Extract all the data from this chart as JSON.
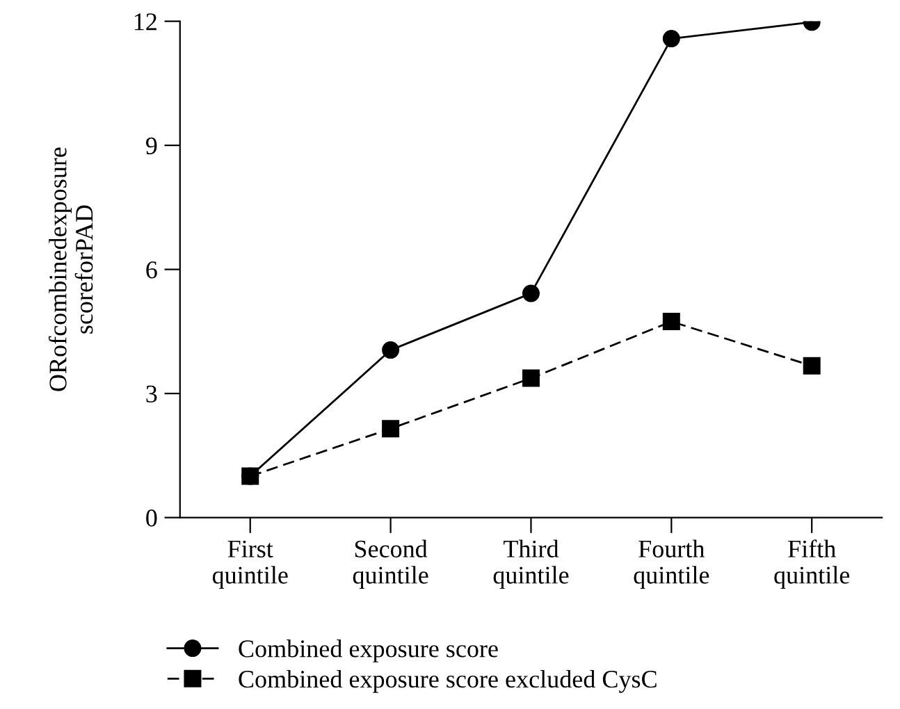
{
  "chart_data": {
    "type": "line",
    "ylabel": "ORofcombinedexposure\nscoreforPAD",
    "categories": [
      "First\nquintile",
      "Second\nquintile",
      "Third\nquintile",
      "Fourth\nquintile",
      "Fifth\nquintile"
    ],
    "series": [
      {
        "name": "Combined exposure score",
        "color": "#000000",
        "values": [
          1.0,
          4.05,
          5.42,
          11.58,
          11.98
        ],
        "marker": "circle",
        "line_style": "solid"
      },
      {
        "name": "Combined exposure score excluded CysC",
        "color": "#000000",
        "values": [
          1.0,
          2.15,
          3.37,
          4.74,
          3.67
        ],
        "marker": "square",
        "line_style": "dashed"
      }
    ],
    "ylim": [
      0,
      12
    ],
    "yticks": [
      0,
      3,
      6,
      9,
      12
    ],
    "grid": false,
    "legend": "bottom"
  }
}
